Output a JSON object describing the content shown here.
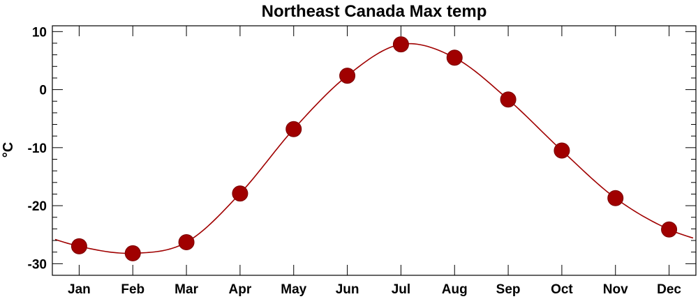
{
  "chart_data": {
    "type": "line",
    "title": "Northeast Canada Max temp",
    "xlabel": "",
    "ylabel": "°C",
    "categories": [
      "Jan",
      "Feb",
      "Mar",
      "Apr",
      "May",
      "Jun",
      "Jul",
      "Aug",
      "Sep",
      "Oct",
      "Nov",
      "Dec"
    ],
    "series": [
      {
        "values": [
          -27.0,
          -28.2,
          -26.3,
          -17.9,
          -6.8,
          2.4,
          7.8,
          5.5,
          -1.7,
          -10.5,
          -18.7,
          -24.1
        ]
      }
    ],
    "y_ticks": [
      -30,
      -20,
      -10,
      0,
      10
    ],
    "ylim": [
      -32,
      11
    ],
    "grid": false,
    "curve_extends_to_frame_edges": true,
    "colors": {
      "series": "#a00000",
      "axes": "#000000"
    }
  }
}
